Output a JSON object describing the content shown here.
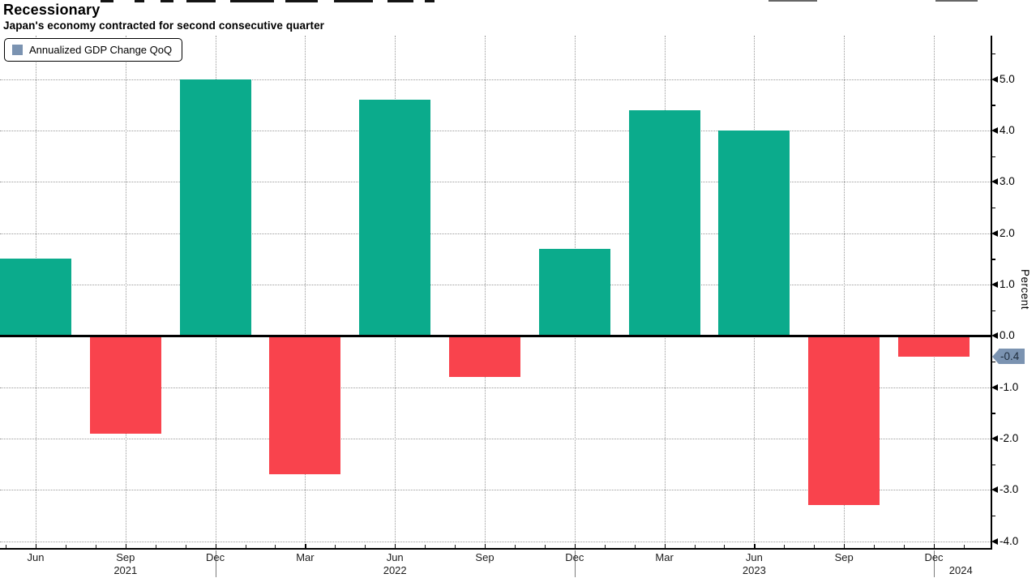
{
  "header": {
    "title": "Recessionary",
    "subtitle": "Japan's economy contracted for second consecutive quarter"
  },
  "legend": {
    "label": "Annualized GDP Change QoQ"
  },
  "chart_data": {
    "type": "bar",
    "title": "Recessionary",
    "subtitle": "Japan's economy contracted for second consecutive quarter",
    "categories": [
      "Jun 2021",
      "Sep 2021",
      "Dec 2021",
      "Mar 2022",
      "Jun 2022",
      "Sep 2022",
      "Dec 2022",
      "Mar 2023",
      "Jun 2023",
      "Sep 2023",
      "Dec 2023"
    ],
    "month_labels": [
      "Jun",
      "Sep",
      "Dec",
      "Mar",
      "Jun",
      "Sep",
      "Dec",
      "Mar",
      "Jun",
      "Sep",
      "Dec"
    ],
    "series": [
      {
        "name": "Annualized GDP Change QoQ",
        "values": [
          1.5,
          -1.9,
          5.0,
          -2.7,
          4.6,
          -0.8,
          1.7,
          4.4,
          4.0,
          -3.3,
          -0.4
        ]
      }
    ],
    "ylabel": "Percent",
    "y_major_ticks": [
      5.0,
      4.0,
      3.0,
      2.0,
      1.0,
      0.0,
      -1.0,
      -2.0,
      -3.0,
      -4.0
    ],
    "y_minor_step": 0.5,
    "ylim": [
      -4.13,
      5.85
    ],
    "zero_line": true,
    "grid": true,
    "legend_position": "top-left",
    "last_value_label": "-0.4",
    "year_labels": [
      {
        "text": "2021",
        "index": 1
      },
      {
        "text": "2022",
        "index": 4
      },
      {
        "text": "2023",
        "index": 8
      },
      {
        "text": "2024",
        "index": 10.3
      }
    ],
    "year_separator_indices": [
      2,
      6,
      10
    ],
    "colors": {
      "positive": "#0bab8c",
      "negative": "#f9434d",
      "highlight_badge": "#7b93b1",
      "badge_text": "#1e2c3c",
      "grid": "#9a9a9a",
      "axis": "#000000"
    }
  }
}
